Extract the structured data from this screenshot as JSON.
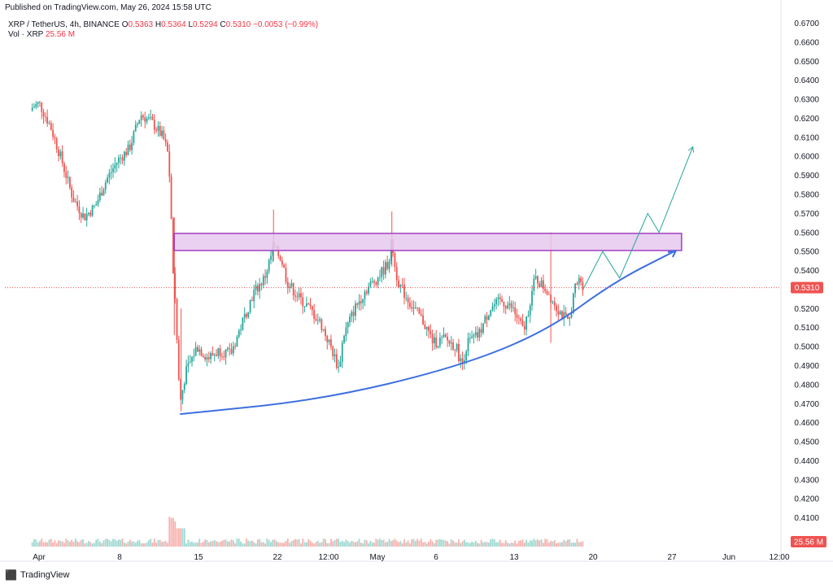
{
  "banner": "Published on TradingView.com, May 26, 2024 15:58 UTC",
  "legend": {
    "symbol": "XRP / TetherUS, 4h, BINANCE",
    "o_label": "O",
    "o_val": "0.5363",
    "h_label": "H",
    "h_val": "0.5364",
    "l_label": "L",
    "l_val": "0.5294",
    "c_label": "C",
    "c_val": "0.5310",
    "change": "−0.0053 (−0.99%)",
    "vol_label": "Vol · XRP",
    "vol_val": "25.56 M"
  },
  "price_tag": "0.5310",
  "volume_tag": "25.56 M",
  "footer": {
    "brand": "TradingView"
  },
  "colors": {
    "up": "#26a69a",
    "down": "#ef5350",
    "curve": "#3d6fe0",
    "zone_fill": "#e6c8ef",
    "zone_stroke": "#a040c0",
    "proj": "#26a69a"
  },
  "chart_data": {
    "type": "candlestick",
    "y_ticks": [
      "0.6700",
      "0.6600",
      "0.6500",
      "0.6400",
      "0.6300",
      "0.6200",
      "0.6100",
      "0.6000",
      "0.5900",
      "0.5800",
      "0.5700",
      "0.5600",
      "0.5500",
      "0.5400",
      "0.5300",
      "0.5200",
      "0.5100",
      "0.5000",
      "0.4900",
      "0.4800",
      "0.4700",
      "0.4600",
      "0.4500",
      "0.4400",
      "0.4300",
      "0.4200",
      "0.4100"
    ],
    "ylim": [
      0.4,
      0.6715
    ],
    "x_ticks": [
      "Apr",
      "8",
      "15",
      "22",
      "12:00",
      "May",
      "6",
      "13",
      "20",
      "27",
      "Jun",
      "12:00"
    ],
    "path": [
      {
        "day": -1,
        "p": 0.624
      },
      {
        "day": 0,
        "p": 0.628
      },
      {
        "day": 1,
        "p": 0.616
      },
      {
        "day": 2,
        "p": 0.598
      },
      {
        "day": 3,
        "p": 0.578
      },
      {
        "day": 4,
        "p": 0.568
      },
      {
        "day": 5,
        "p": 0.574
      },
      {
        "day": 6,
        "p": 0.588
      },
      {
        "day": 7,
        "p": 0.598
      },
      {
        "day": 8,
        "p": 0.604
      },
      {
        "day": 9,
        "p": 0.622
      },
      {
        "day": 10,
        "p": 0.618
      },
      {
        "day": 11,
        "p": 0.61
      },
      {
        "day": 11.5,
        "p": 0.6
      },
      {
        "day": 11.9,
        "p": 0.54
      },
      {
        "day": 12.2,
        "p": 0.508
      },
      {
        "day": 12.5,
        "p": 0.47
      },
      {
        "day": 13,
        "p": 0.486
      },
      {
        "day": 14,
        "p": 0.5
      },
      {
        "day": 15,
        "p": 0.494
      },
      {
        "day": 16,
        "p": 0.498
      },
      {
        "day": 17,
        "p": 0.496
      },
      {
        "day": 18,
        "p": 0.512
      },
      {
        "day": 19,
        "p": 0.528
      },
      {
        "day": 20,
        "p": 0.536
      },
      {
        "day": 20.8,
        "p": 0.552
      },
      {
        "day": 21.5,
        "p": 0.546
      },
      {
        "day": 22,
        "p": 0.534
      },
      {
        "day": 23,
        "p": 0.526
      },
      {
        "day": 24,
        "p": 0.52
      },
      {
        "day": 25,
        "p": 0.512
      },
      {
        "day": 26,
        "p": 0.498
      },
      {
        "day": 26.6,
        "p": 0.488
      },
      {
        "day": 27,
        "p": 0.506
      },
      {
        "day": 28,
        "p": 0.52
      },
      {
        "day": 29,
        "p": 0.53
      },
      {
        "day": 30,
        "p": 0.536
      },
      {
        "day": 31,
        "p": 0.544
      },
      {
        "day": 31.3,
        "p": 0.556
      },
      {
        "day": 31.6,
        "p": 0.54
      },
      {
        "day": 32,
        "p": 0.532
      },
      {
        "day": 33,
        "p": 0.522
      },
      {
        "day": 34,
        "p": 0.514
      },
      {
        "day": 35,
        "p": 0.502
      },
      {
        "day": 36,
        "p": 0.504
      },
      {
        "day": 37,
        "p": 0.5
      },
      {
        "day": 37.5,
        "p": 0.49
      },
      {
        "day": 38,
        "p": 0.502
      },
      {
        "day": 39,
        "p": 0.506
      },
      {
        "day": 40,
        "p": 0.52
      },
      {
        "day": 41,
        "p": 0.524
      },
      {
        "day": 42,
        "p": 0.52
      },
      {
        "day": 43,
        "p": 0.508
      },
      {
        "day": 44,
        "p": 0.536
      },
      {
        "day": 45,
        "p": 0.53
      },
      {
        "day": 46,
        "p": 0.52
      },
      {
        "day": 47,
        "p": 0.512
      },
      {
        "day": 47.5,
        "p": 0.53
      },
      {
        "day": 48,
        "p": 0.536
      },
      {
        "day": 48.3,
        "p": 0.531
      }
    ],
    "volume_ylim": [
      0,
      1
    ],
    "last_price": 0.531,
    "resistance_zone": {
      "low": 0.5505,
      "high": 0.5595,
      "start_day": 12,
      "end_day": 57
    },
    "support_curve": [
      {
        "day": 12.5,
        "p": 0.4645
      },
      {
        "day": 25,
        "p": 0.472
      },
      {
        "day": 37,
        "p": 0.489
      },
      {
        "day": 45,
        "p": 0.508
      },
      {
        "day": 51,
        "p": 0.534
      },
      {
        "day": 56.5,
        "p": 0.5505
      }
    ],
    "projection": [
      {
        "day": 48.3,
        "p": 0.5305
      },
      {
        "day": 50,
        "p": 0.55
      },
      {
        "day": 51.5,
        "p": 0.536
      },
      {
        "day": 54,
        "p": 0.57
      },
      {
        "day": 55,
        "p": 0.56
      },
      {
        "day": 58,
        "p": 0.605
      }
    ]
  }
}
